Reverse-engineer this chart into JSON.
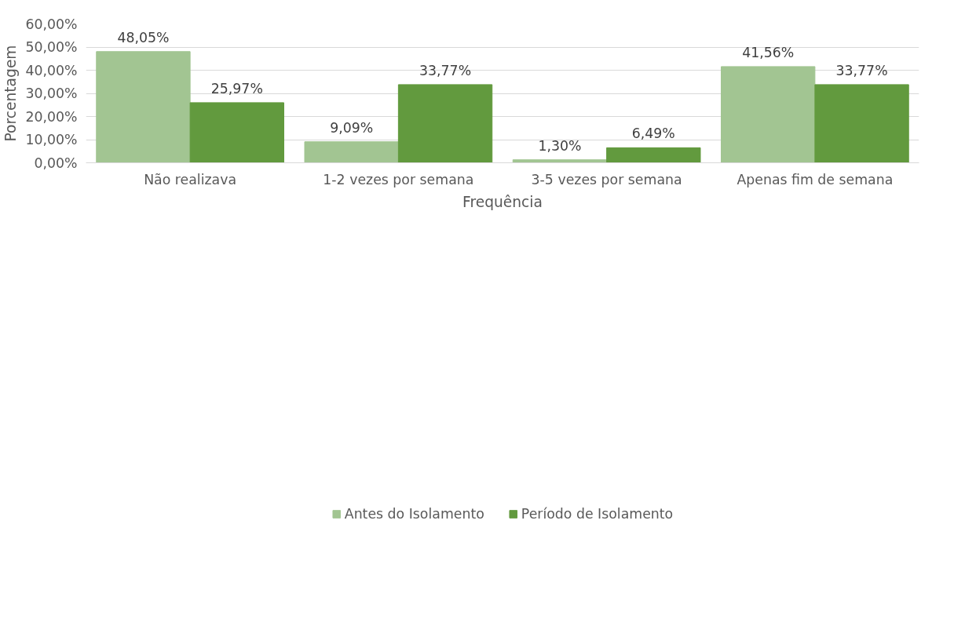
{
  "chart_data": {
    "type": "bar",
    "xlabel": "Frequência",
    "ylabel": "Porcentagem",
    "categories": [
      "Não realizava",
      "1-2 vezes por semana",
      "3-5 vezes por semana",
      "Apenas fim de semana"
    ],
    "series": [
      {
        "name": "Antes do Isolamento",
        "color": "#a2c592",
        "values": [
          48.05,
          9.09,
          1.3,
          41.56
        ],
        "value_labels": [
          "48,05%",
          "9,09%",
          "1,30%",
          "41,56%"
        ]
      },
      {
        "name": "Período de Isolamento",
        "color": "#629a3e",
        "values": [
          25.97,
          33.77,
          6.49,
          33.77
        ],
        "value_labels": [
          "25,97%",
          "33,77%",
          "6,49%",
          "33,77%"
        ]
      }
    ],
    "ylim": [
      0,
      60
    ],
    "yticks": [
      {
        "value": 0,
        "label": "0,00%"
      },
      {
        "value": 10,
        "label": "10,00%"
      },
      {
        "value": 20,
        "label": "20,00%"
      },
      {
        "value": 30,
        "label": "30,00%"
      },
      {
        "value": 40,
        "label": "40,00%"
      },
      {
        "value": 50,
        "label": "50,00%"
      },
      {
        "value": 60,
        "label": "60,00%"
      }
    ],
    "grid": "y",
    "legend": "bottom"
  }
}
